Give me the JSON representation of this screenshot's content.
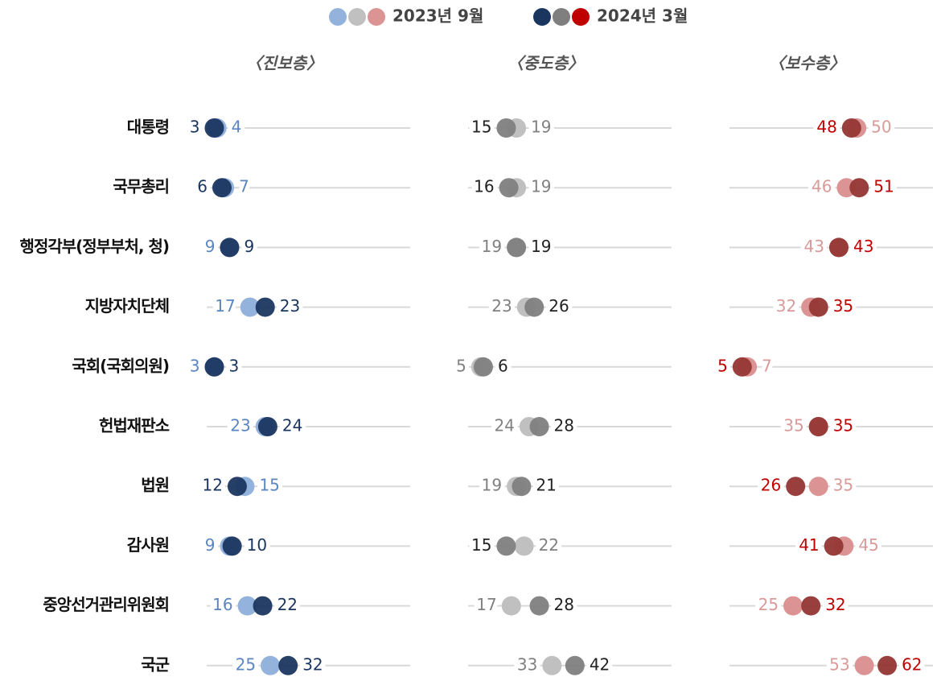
{
  "chart_data": {
    "type": "dot",
    "legend": {
      "labels": [
        "2023년 9월",
        "2024년 3월"
      ],
      "colors": [
        [
          "#94b3dc",
          "#c0c0c0",
          "#dc9393"
        ],
        [
          "#1a365f",
          "#7f7f7f",
          "#c00000"
        ]
      ]
    },
    "categories": [
      "대통령",
      "국무총리",
      "행정각부(정부부처, 청)",
      "지방자치단체",
      "국회(국회의원)",
      "헌법재판소",
      "법원",
      "감사원",
      "중앙선거관리위원회",
      "국군"
    ],
    "xlim": [
      0,
      80
    ],
    "panels": [
      {
        "title": "〈진보층〉",
        "series": [
          {
            "color": "#94b3dc",
            "label_color": "#5b86c0",
            "values": [
              4,
              7,
              9,
              17,
              3,
              23,
              15,
              9,
              16,
              25
            ]
          },
          {
            "color": "#1a365f",
            "label_color": "#1a365f",
            "values": [
              3,
              6,
              9,
              23,
              3,
              24,
              12,
              10,
              22,
              32
            ]
          }
        ]
      },
      {
        "title": "〈중도층〉",
        "series": [
          {
            "color": "#c0c0c0",
            "label_color": "#808080",
            "values": [
              19,
              19,
              19,
              23,
              5,
              24,
              19,
              22,
              17,
              33
            ]
          },
          {
            "color": "#7f7f7f",
            "label_color": "#222222",
            "values": [
              15,
              16,
              19,
              26,
              6,
              28,
              21,
              15,
              28,
              42
            ]
          }
        ]
      },
      {
        "title": "〈보수층〉",
        "series": [
          {
            "color": "#dc9393",
            "label_color": "#d99a9a",
            "values": [
              50,
              46,
              43,
              32,
              7,
              35,
              35,
              45,
              25,
              53
            ]
          },
          {
            "color": "#943634",
            "label_color": "#c00000",
            "values": [
              48,
              51,
              43,
              35,
              5,
              35,
              26,
              41,
              32,
              62
            ]
          }
        ]
      }
    ]
  }
}
